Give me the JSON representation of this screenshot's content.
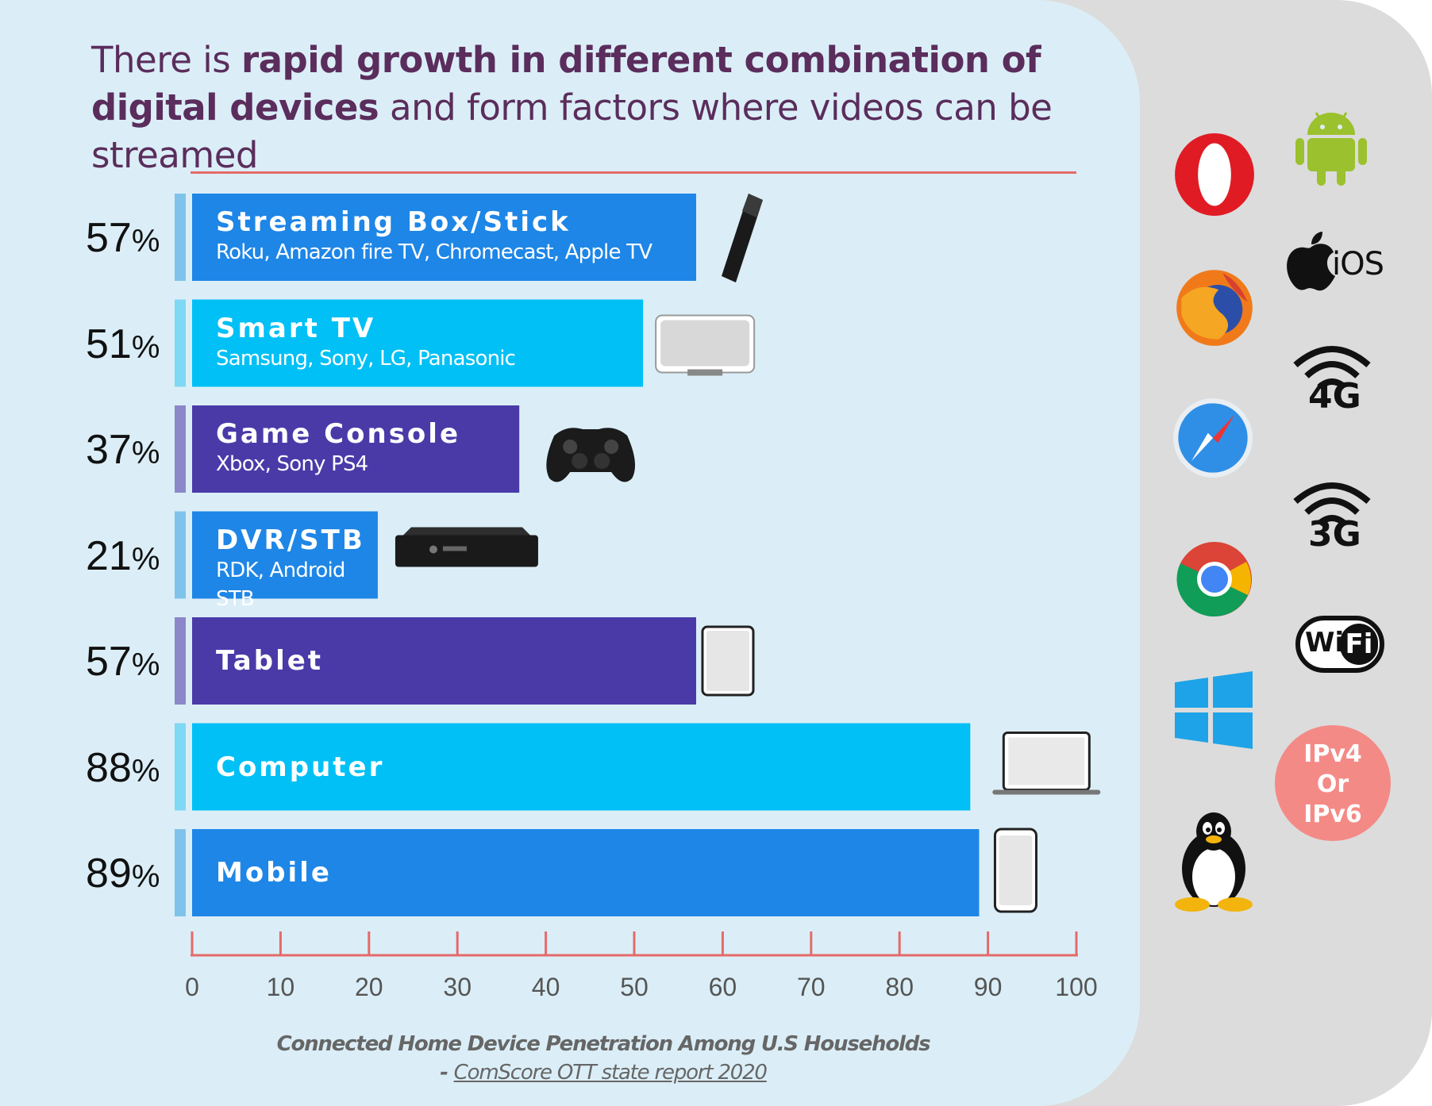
{
  "headline": {
    "part1": "There is ",
    "bold1": "rapid growth in different combination of digital devices",
    "part2": " and form factors where videos can be streamed"
  },
  "chart_data": {
    "type": "bar",
    "orientation": "horizontal",
    "categories": [
      "Streaming Box/Stick",
      "Smart TV",
      "Game Console",
      "DVR/STB",
      "Tablet",
      "Computer",
      "Mobile"
    ],
    "subtitles": [
      "Roku, Amazon fire TV, Chromecast, Apple TV",
      "Samsung, Sony, LG, Panasonic",
      "Xbox, Sony PS4",
      "RDK, Android STB",
      "",
      "",
      ""
    ],
    "values": [
      57,
      51,
      37,
      21,
      57,
      88,
      89
    ],
    "value_labels": [
      "57",
      "51",
      "37",
      "21",
      "57",
      "88",
      "89"
    ],
    "value_unit": "%",
    "xlim": [
      0,
      100
    ],
    "xticks": [
      0,
      10,
      20,
      30,
      40,
      50,
      60,
      70,
      80,
      90,
      100
    ],
    "colors": [
      "#1e86e6",
      "#00c0f6",
      "#4a3aa8",
      "#1e86e6",
      "#4a3aa8",
      "#00c0f6",
      "#1e86e6"
    ],
    "accent_colors": [
      "#7fc3ea",
      "#7fd8f4",
      "#8b87c9",
      "#7fc3ea",
      "#8b87c9",
      "#7fd8f4",
      "#7fc3ea"
    ],
    "device_icons": [
      "streaming-stick-icon",
      "smart-tv-icon",
      "game-controller-icon",
      "set-top-box-icon",
      "tablet-icon",
      "laptop-icon",
      "smartphone-icon"
    ],
    "axis_color": "#e56a6a"
  },
  "caption": {
    "line1": "Connected Home Device Penetration Among U.S Households",
    "dash": "- ",
    "source": "ComScore OTT state report 2020"
  },
  "side_icons": {
    "left": [
      "opera-icon",
      "firefox-icon",
      "safari-icon",
      "chrome-icon",
      "windows-icon",
      "linux-tux-icon"
    ],
    "right": [
      "android-icon",
      "apple-ios-icon",
      "wifi-4g-icon",
      "wifi-3g-icon",
      "wifi-logo-icon",
      "ip-version-badge"
    ],
    "ios_label": "iOS",
    "label_4g": "4G",
    "label_3g": "3G",
    "wifi_label_a": "Wi",
    "wifi_label_b": "Fi",
    "ip_badge": [
      "IPv4",
      "Or",
      "IPv6"
    ]
  }
}
